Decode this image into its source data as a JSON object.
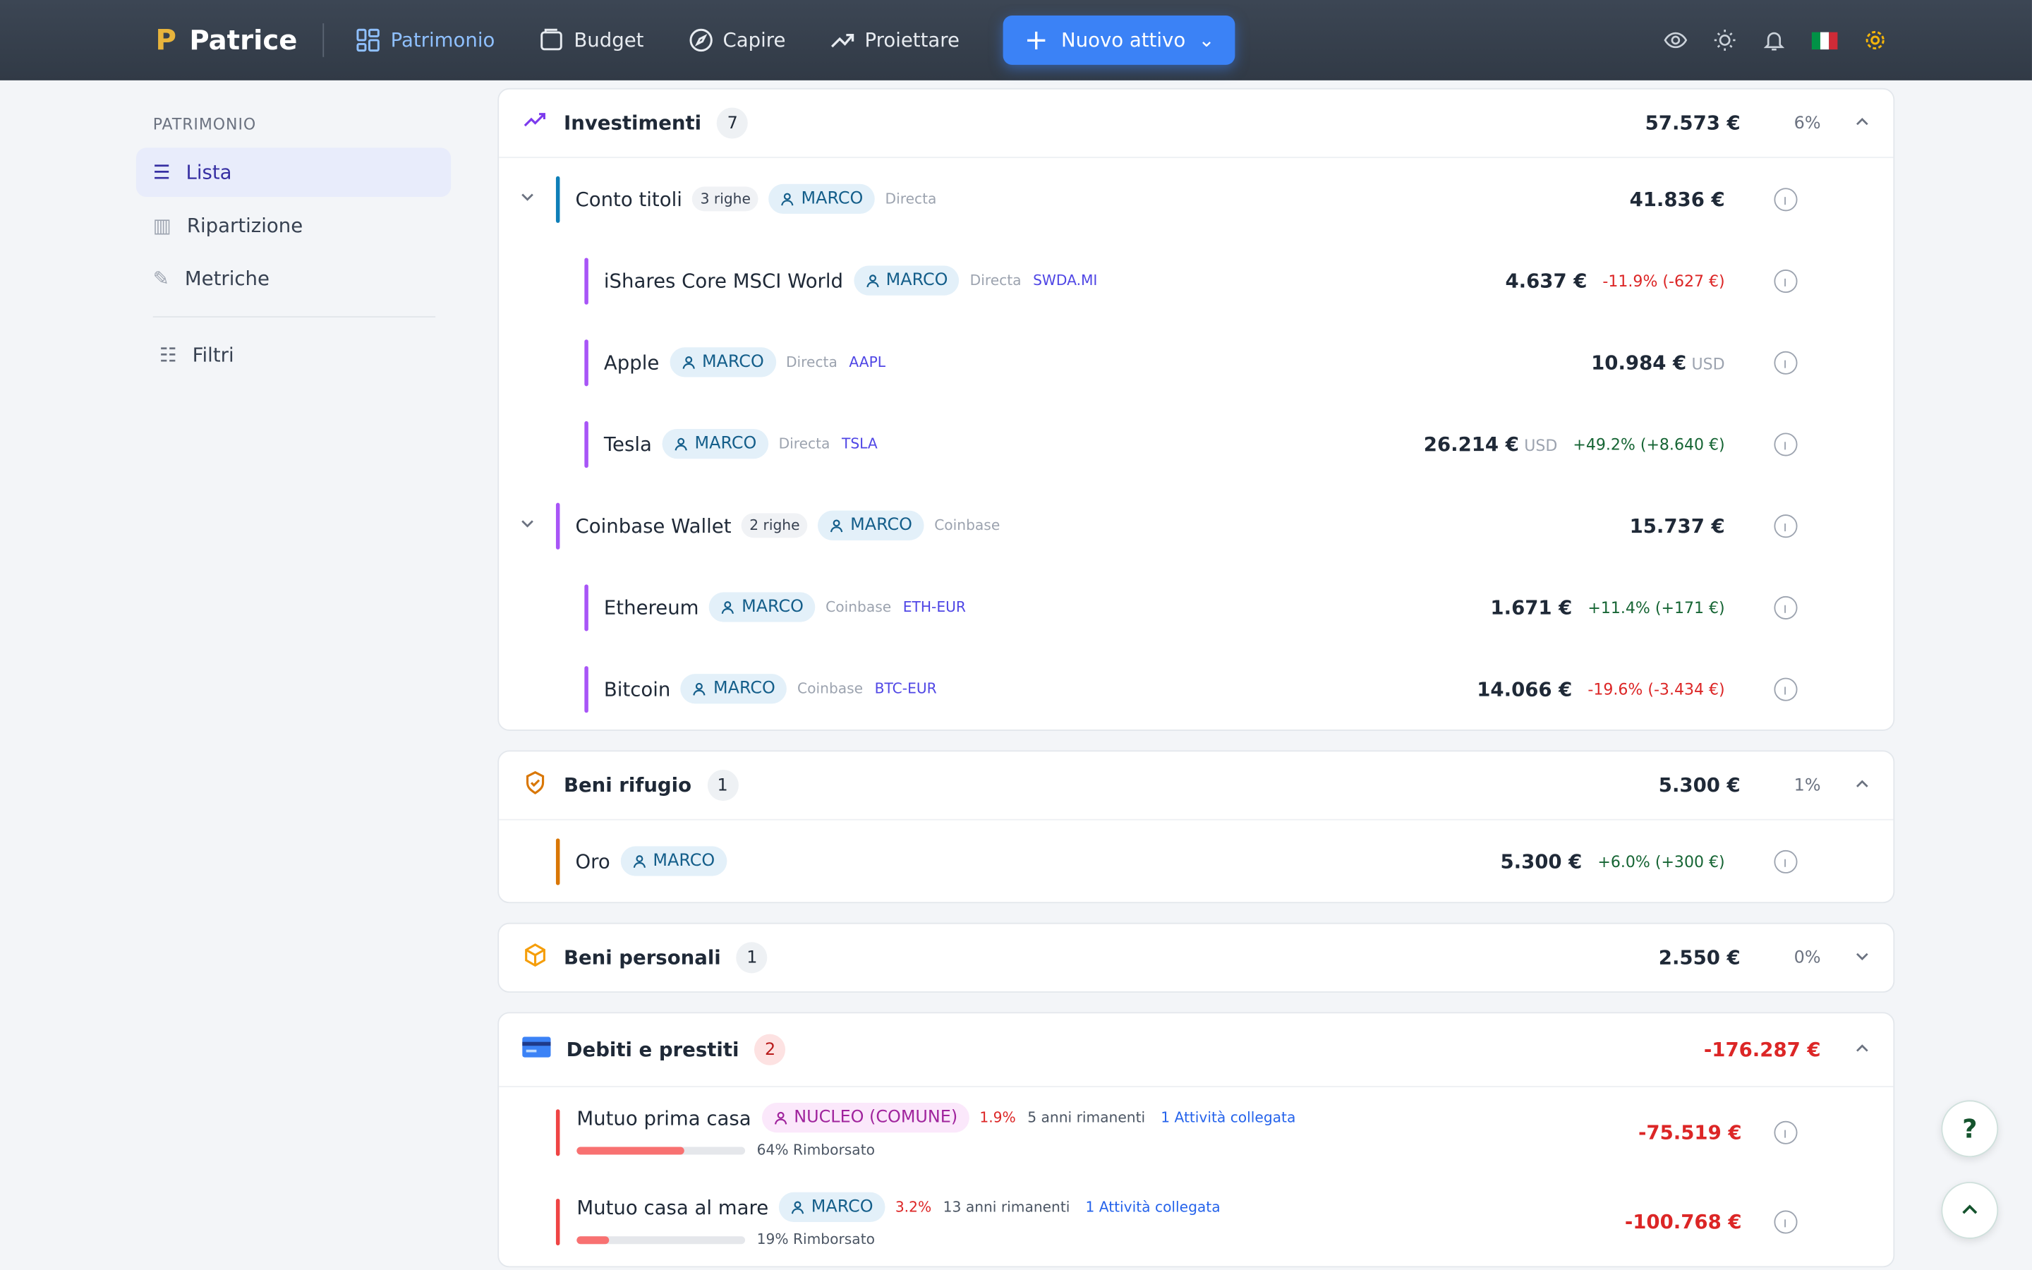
{
  "nav": {
    "brand": "Patrice",
    "items": [
      "Patrimonio",
      "Budget",
      "Capire",
      "Proiettare"
    ],
    "cta": "Nuovo attivo"
  },
  "sidebar": {
    "section": "PATRIMONIO",
    "items": [
      "Lista",
      "Ripartizione",
      "Metriche"
    ],
    "filter": "Filtri"
  },
  "groups": [
    {
      "name": "Investimenti",
      "count": 7,
      "total": "57.573 €",
      "share": "6%",
      "open": true,
      "accounts": [
        {
          "name": "Conto titoli",
          "rows": "3 righe",
          "owner": "MARCO",
          "broker": "Directa",
          "value": "41.836 €",
          "color": "#0e7fb8",
          "children": [
            {
              "name": "iShares Core MSCI World",
              "owner": "MARCO",
              "broker": "Directa",
              "ticker": "SWDA.MI",
              "value": "4.637 €",
              "change": "-11.9% (-627 €)"
            },
            {
              "name": "Apple",
              "owner": "MARCO",
              "broker": "Directa",
              "ticker": "AAPL",
              "value": "10.984 €",
              "currency": "USD"
            },
            {
              "name": "Tesla",
              "owner": "MARCO",
              "broker": "Directa",
              "ticker": "TSLA",
              "value": "26.214 €",
              "currency": "USD",
              "change": "+49.2% (+8.640 €)"
            }
          ]
        },
        {
          "name": "Coinbase Wallet",
          "rows": "2 righe",
          "owner": "MARCO",
          "broker": "Coinbase",
          "value": "15.737 €",
          "color": "#a855f7",
          "children": [
            {
              "name": "Ethereum",
              "owner": "MARCO",
              "broker": "Coinbase",
              "ticker": "ETH-EUR",
              "value": "1.671 €",
              "change": "+11.4% (+171 €)"
            },
            {
              "name": "Bitcoin",
              "owner": "MARCO",
              "broker": "Coinbase",
              "ticker": "BTC-EUR",
              "value": "14.066 €",
              "change": "-19.6% (-3.434 €)"
            }
          ]
        }
      ]
    },
    {
      "name": "Beni rifugio",
      "count": 1,
      "total": "5.300 €",
      "share": "1%",
      "open": true,
      "accounts": [
        {
          "name": "Oro",
          "owner": "MARCO",
          "value": "5.300 €",
          "change": "+6.0% (+300 €)",
          "color": "#d97706"
        }
      ]
    },
    {
      "name": "Beni personali",
      "count": 1,
      "total": "2.550 €",
      "share": "0%",
      "open": false,
      "accounts": []
    },
    {
      "name": "Debiti e prestiti",
      "count": 2,
      "total": "-176.287 €",
      "open": true,
      "debts": [
        {
          "name": "Mutuo prima casa",
          "owner": "NUCLEO (COMUNE)",
          "rate": "1.9%",
          "remaining": "5 anni rimanenti",
          "linked": "1 Attività collegata",
          "repaid": 64,
          "repaid_label": "64% Rimborsato",
          "value": "-75.519 €"
        },
        {
          "name": "Mutuo casa al mare",
          "owner": "MARCO",
          "rate": "3.2%",
          "remaining": "13 anni rimanenti",
          "linked": "1 Attività collegata",
          "repaid": 19,
          "repaid_label": "19% Rimborsato",
          "value": "-100.768 €"
        }
      ]
    }
  ]
}
